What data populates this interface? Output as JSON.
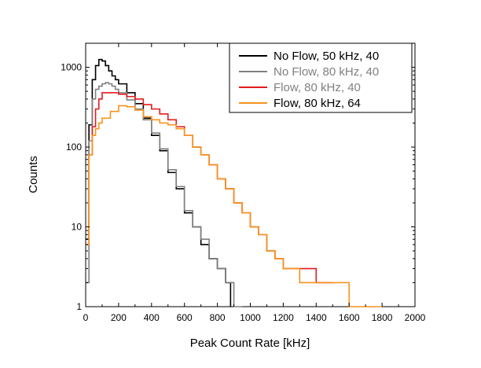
{
  "chart_data": {
    "type": "line",
    "title": "",
    "xlabel": "Peak Count Rate [kHz]",
    "ylabel": "Counts",
    "xlim": [
      0,
      2000
    ],
    "ylim": [
      1,
      2000
    ],
    "yscale": "log",
    "grid": false,
    "legend_position": "top-right",
    "x_ticks": [
      0,
      200,
      400,
      600,
      800,
      1000,
      1200,
      1400,
      1600,
      1800,
      2000
    ],
    "x_tick_labels": [
      "0",
      "200",
      "400",
      "600",
      "800",
      "1000",
      "1200",
      "1400",
      "1600",
      "1800",
      "2000"
    ],
    "y_ticks": [
      1,
      10,
      100,
      1000
    ],
    "y_tick_labels": [
      "1",
      "10",
      "100",
      "1000"
    ],
    "series": [
      {
        "name": "No Flow, 50 kHz, 40",
        "color": "#000000",
        "x": [
          0,
          20,
          40,
          60,
          80,
          100,
          120,
          140,
          160,
          180,
          200,
          250,
          300,
          350,
          400,
          450,
          500,
          550,
          600,
          650,
          700,
          750,
          800,
          850,
          880
        ],
        "y": [
          7,
          190,
          700,
          1050,
          1250,
          1200,
          1050,
          900,
          780,
          700,
          620,
          480,
          350,
          230,
          140,
          90,
          48,
          30,
          15,
          10,
          6,
          4,
          3,
          2,
          1
        ]
      },
      {
        "name": "No Flow, 80 kHz, 40",
        "color": "#808080",
        "x": [
          0,
          20,
          40,
          60,
          80,
          100,
          120,
          140,
          160,
          180,
          200,
          250,
          300,
          350,
          400,
          450,
          500,
          550,
          600,
          650,
          700,
          750,
          800,
          850,
          900,
          950
        ],
        "y": [
          2,
          120,
          400,
          530,
          580,
          620,
          640,
          620,
          580,
          530,
          480,
          390,
          300,
          220,
          150,
          95,
          52,
          32,
          16,
          10,
          7,
          4,
          3,
          2,
          1,
          1
        ]
      },
      {
        "name": "Flow, 80 kHz, 40",
        "color": "#e41a1c",
        "x": [
          0,
          20,
          40,
          60,
          80,
          100,
          150,
          200,
          250,
          300,
          350,
          400,
          450,
          500,
          550,
          600,
          650,
          700,
          750,
          800,
          850,
          900,
          950,
          1000,
          1050,
          1100,
          1150,
          1200,
          1300,
          1400,
          1500
        ],
        "y": [
          6,
          80,
          180,
          300,
          400,
          480,
          480,
          460,
          430,
          400,
          340,
          300,
          260,
          220,
          180,
          140,
          100,
          80,
          60,
          40,
          30,
          20,
          15,
          10,
          8,
          5,
          4,
          3,
          3,
          2,
          2
        ]
      },
      {
        "name": "Flow, 80 kHz, 64",
        "color": "#f7941d",
        "x": [
          0,
          20,
          40,
          60,
          80,
          100,
          150,
          200,
          250,
          300,
          350,
          400,
          450,
          500,
          550,
          600,
          650,
          700,
          750,
          800,
          850,
          900,
          950,
          1000,
          1050,
          1100,
          1150,
          1200,
          1300,
          1400,
          1500,
          1600,
          1700,
          1800
        ],
        "y": [
          6,
          80,
          140,
          170,
          200,
          230,
          280,
          330,
          320,
          290,
          240,
          220,
          200,
          190,
          170,
          140,
          100,
          80,
          60,
          40,
          30,
          20,
          15,
          10,
          8,
          5,
          4,
          3,
          2,
          2,
          2,
          1,
          1,
          1
        ]
      }
    ]
  }
}
